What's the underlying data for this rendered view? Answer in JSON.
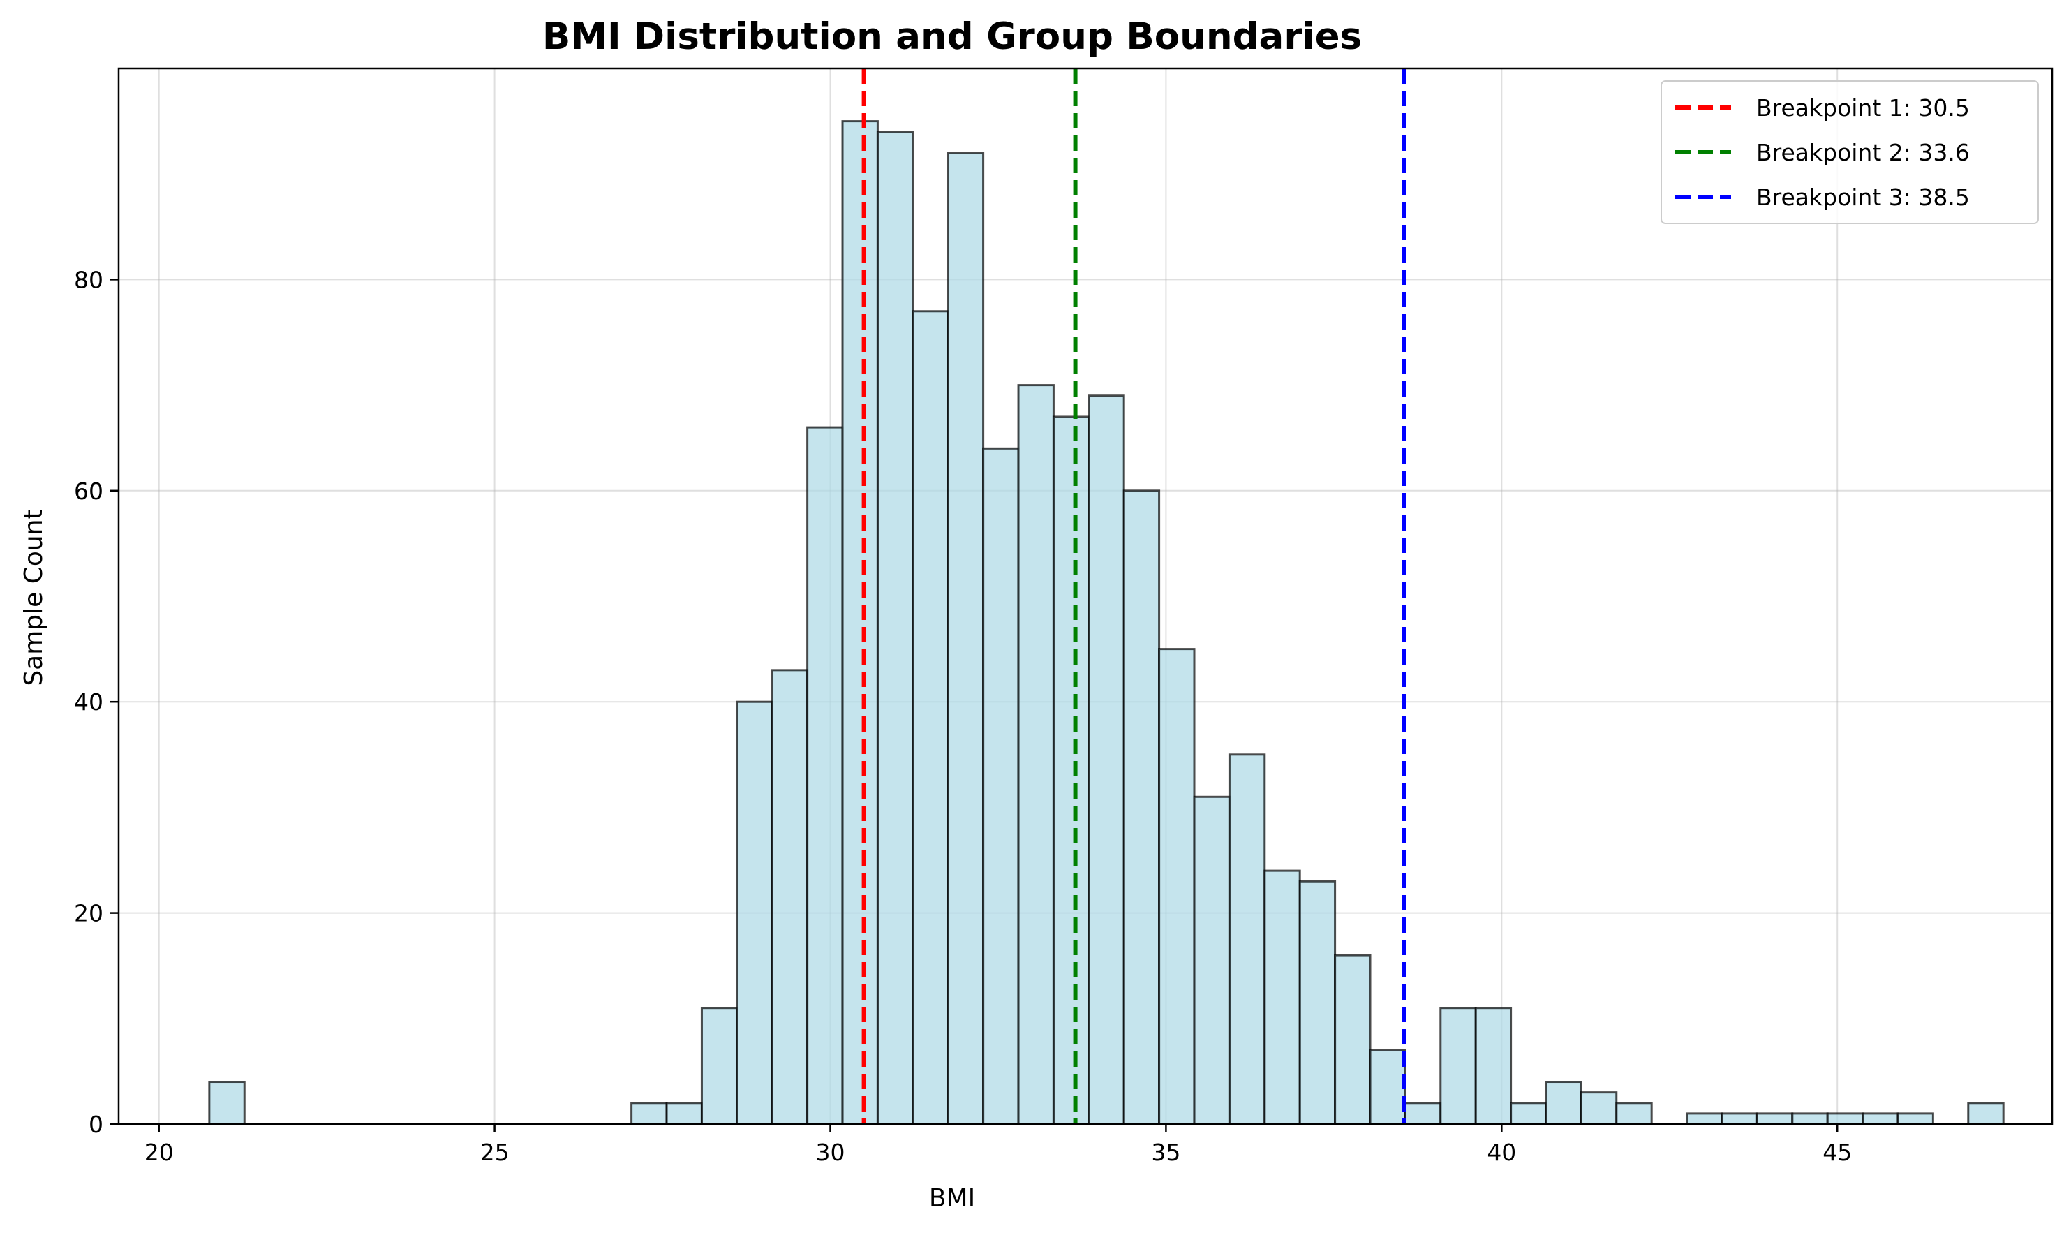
{
  "chart_data": {
    "type": "bar",
    "subtype": "histogram",
    "title": "BMI Distribution and Group Boundaries",
    "xlabel": "BMI",
    "ylabel": "Sample Count",
    "xlim": [
      19.4,
      48.2
    ],
    "ylim": [
      0,
      100
    ],
    "xticks": [
      20,
      25,
      30,
      35,
      40,
      45
    ],
    "yticks": [
      0,
      20,
      40,
      60,
      80
    ],
    "grid": true,
    "legend_position": "top-right",
    "bin_width": 0.524,
    "bins_start": 20.75,
    "counts": [
      4,
      0,
      0,
      0,
      0,
      0,
      0,
      0,
      0,
      0,
      0,
      0,
      2,
      2,
      11,
      40,
      43,
      66,
      95,
      94,
      77,
      92,
      64,
      70,
      67,
      69,
      60,
      45,
      31,
      35,
      24,
      23,
      16,
      7,
      2,
      11,
      11,
      2,
      4,
      3,
      2,
      0,
      1,
      1,
      1,
      1,
      1,
      1,
      1,
      0,
      2
    ],
    "bar_color": "#add8e6",
    "bar_edge_color": "#000000",
    "breakpoints": [
      {
        "label": "Breakpoint 1: 30.5",
        "value": 30.5,
        "color": "#ff0000"
      },
      {
        "label": "Breakpoint 2: 33.6",
        "value": 33.65,
        "color": "#008000"
      },
      {
        "label": "Breakpoint 3: 38.5",
        "value": 38.55,
        "color": "#0000ff"
      }
    ]
  }
}
